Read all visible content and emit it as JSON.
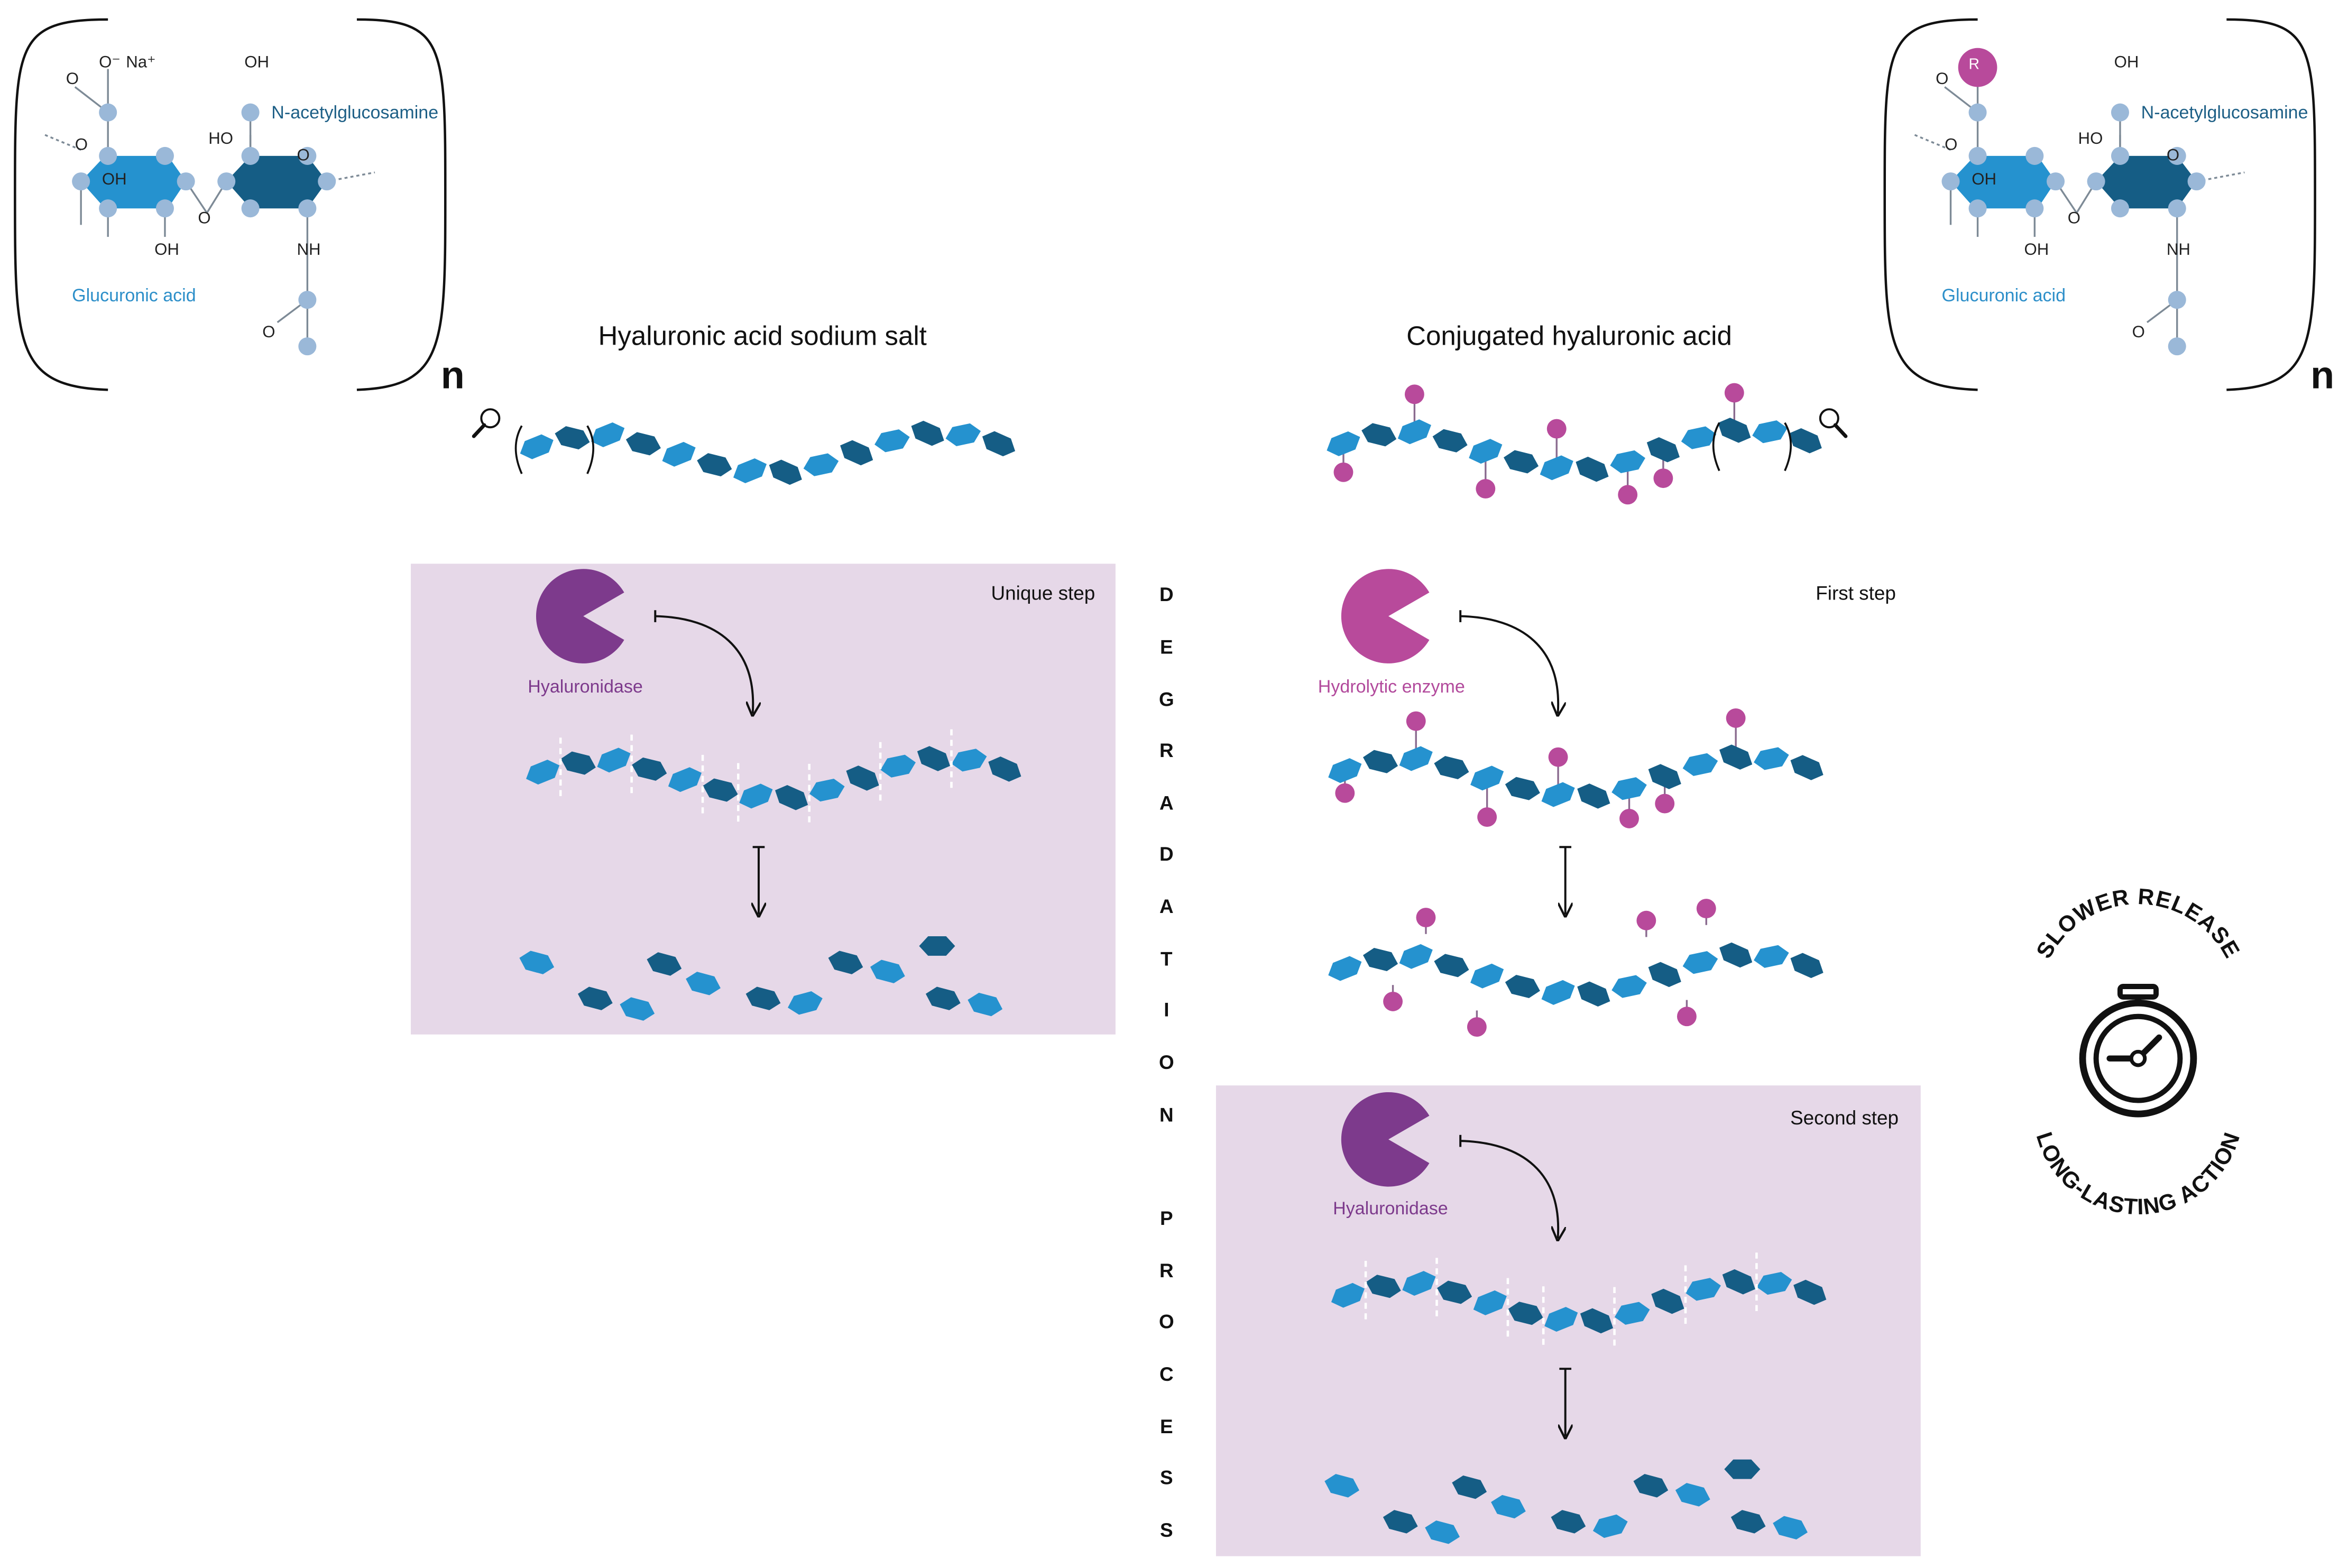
{
  "titles": {
    "left": "Hyaluronic acid sodium salt",
    "right": "Conjugated hyaluronic acid"
  },
  "chemistry": {
    "left": {
      "o_minus": "O⁻",
      "na": "Na⁺",
      "o_top": "O",
      "o_ring_left": "O",
      "oh_ring": "OH",
      "oh_bottom": "OH",
      "o_link": "O",
      "ho": "HO",
      "o_ring_right": "O",
      "oh_top": "OH",
      "nh": "NH",
      "o_acetyl": "O",
      "glucuronic": "Glucuronic acid",
      "nacetyl": "N-acetylglucosamine",
      "n": "n"
    },
    "right": {
      "r": "R",
      "o_top": "O",
      "o_ring_left": "O",
      "oh_ring": "OH",
      "oh_bottom": "OH",
      "o_link": "O",
      "ho": "HO",
      "o_ring_right": "O",
      "oh_top": "OH",
      "nh": "NH",
      "o_acetyl": "O",
      "glucuronic": "Glucuronic acid",
      "nacetyl": "N-acetylglucosamine",
      "n": "n"
    }
  },
  "steps": {
    "unique": "Unique step",
    "first": "First step",
    "second": "Second step"
  },
  "enzymes": {
    "hyaluronidase_left": "Hyaluronidase",
    "hydrolytic": "Hydrolytic enzyme",
    "hyaluronidase_right": "Hyaluronidase"
  },
  "vertical_text": [
    "D",
    "E",
    "G",
    "R",
    "A",
    "D",
    "A",
    "T",
    "I",
    "O",
    "N",
    "",
    "P",
    "R",
    "O",
    "C",
    "E",
    "S",
    "S"
  ],
  "badge": {
    "top": "SLOWER RELEASE",
    "bottom": "LONG-LASTING ACTION"
  },
  "colors": {
    "light_unit": "#2592cf",
    "dark_unit": "#155d85",
    "conjugate": "#b84a9b",
    "enzyme_purple": "#7d3a8c",
    "enzyme_pink": "#b84a9b",
    "box_bg": "#e6d8e8",
    "atom": "#9ab8d8"
  },
  "icons": [
    "magnifier-icon",
    "pacman-enzyme-icon",
    "stopwatch-icon",
    "arrow-icon"
  ]
}
